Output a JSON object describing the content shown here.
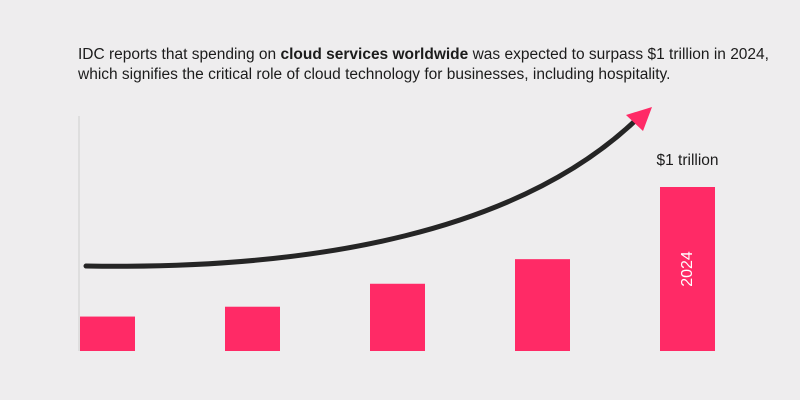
{
  "caption": {
    "text_before": "IDC reports that spending on ",
    "text_bold": "cloud services worldwide",
    "text_after": " was expected to surpass $1 trillion in 2024, which signifies the critical role of cloud technology for businesses, including hospitality."
  },
  "chart_data": {
    "type": "bar",
    "title": "",
    "xlabel": "",
    "ylabel": "",
    "categories": [
      "",
      "",
      "",
      "",
      "2024"
    ],
    "values": [
      0.21,
      0.27,
      0.41,
      0.56,
      1.0
    ],
    "value_labels": [
      "",
      "",
      "",
      "",
      "$1 trillion"
    ],
    "ylim": [
      0,
      1.0
    ],
    "grid": false,
    "legend": "none",
    "trend_arrow": true,
    "colors": {
      "bar": "#ff2a66",
      "arrow": "#252525",
      "arrowhead": "#ff2a66",
      "axis": "#cfcfcf"
    }
  }
}
